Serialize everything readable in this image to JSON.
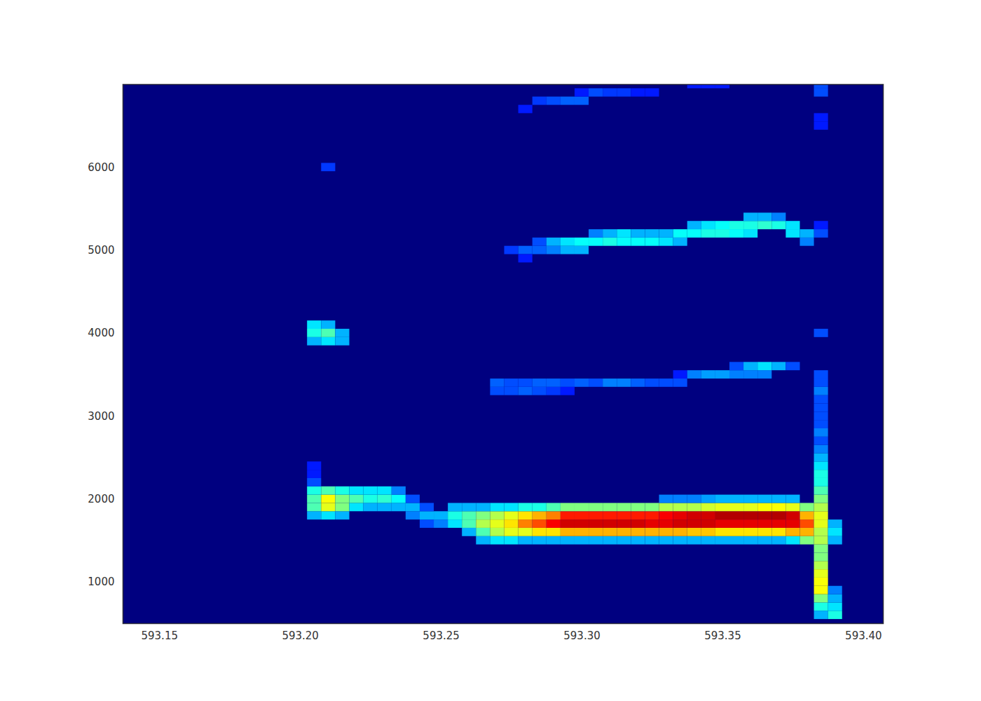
{
  "chart_data": {
    "type": "heatmap",
    "xlim": [
      593.137,
      593.407
    ],
    "ylim": [
      500,
      7000
    ],
    "xticks": [
      593.15,
      {
        "value": 593.2,
        "label": "593.20"
      },
      593.25,
      {
        "value": 593.3,
        "label": "593.30"
      },
      593.35,
      {
        "value": 593.4,
        "label": "593.40"
      }
    ],
    "yticks": [
      1000,
      2000,
      3000,
      4000,
      5000,
      6000
    ],
    "grid": false,
    "color_range": [
      0,
      1
    ],
    "cell_size": {
      "x": 0.005,
      "y": 100
    },
    "cells": [
      [
        593.205,
        1800,
        0.3
      ],
      [
        593.205,
        1900,
        0.45
      ],
      [
        593.205,
        2000,
        0.45
      ],
      [
        593.205,
        2100,
        0.4
      ],
      [
        593.205,
        2200,
        0.2
      ],
      [
        593.205,
        2300,
        0.15
      ],
      [
        593.205,
        2400,
        0.15
      ],
      [
        593.21,
        1800,
        0.35
      ],
      [
        593.21,
        1900,
        0.6
      ],
      [
        593.21,
        2000,
        0.62
      ],
      [
        593.21,
        2100,
        0.45
      ],
      [
        593.215,
        1800,
        0.3
      ],
      [
        593.215,
        1900,
        0.5
      ],
      [
        593.215,
        2000,
        0.5
      ],
      [
        593.215,
        2100,
        0.4
      ],
      [
        593.22,
        1900,
        0.35
      ],
      [
        593.22,
        2000,
        0.45
      ],
      [
        593.22,
        2100,
        0.35
      ],
      [
        593.225,
        1900,
        0.3
      ],
      [
        593.225,
        2000,
        0.4
      ],
      [
        593.225,
        2100,
        0.35
      ],
      [
        593.23,
        1900,
        0.3
      ],
      [
        593.23,
        2000,
        0.42
      ],
      [
        593.23,
        2100,
        0.35
      ],
      [
        593.235,
        1900,
        0.3
      ],
      [
        593.235,
        2000,
        0.38
      ],
      [
        593.235,
        2100,
        0.25
      ],
      [
        593.24,
        1800,
        0.25
      ],
      [
        593.24,
        1900,
        0.3
      ],
      [
        593.24,
        2000,
        0.2
      ],
      [
        593.245,
        1700,
        0.2
      ],
      [
        593.245,
        1800,
        0.3
      ],
      [
        593.245,
        1900,
        0.2
      ],
      [
        593.25,
        1700,
        0.25
      ],
      [
        593.25,
        1800,
        0.3
      ],
      [
        593.255,
        1700,
        0.35
      ],
      [
        593.255,
        1800,
        0.4
      ],
      [
        593.255,
        1900,
        0.3
      ],
      [
        593.26,
        1600,
        0.3
      ],
      [
        593.26,
        1700,
        0.45
      ],
      [
        593.26,
        1800,
        0.45
      ],
      [
        593.26,
        1900,
        0.3
      ],
      [
        593.265,
        1500,
        0.3
      ],
      [
        593.265,
        1600,
        0.45
      ],
      [
        593.265,
        1700,
        0.55
      ],
      [
        593.265,
        1800,
        0.5
      ],
      [
        593.265,
        1900,
        0.3
      ],
      [
        593.27,
        1500,
        0.35
      ],
      [
        593.27,
        1600,
        0.55
      ],
      [
        593.27,
        1700,
        0.6
      ],
      [
        593.27,
        1800,
        0.55
      ],
      [
        593.27,
        1900,
        0.35
      ],
      [
        593.275,
        1500,
        0.35
      ],
      [
        593.275,
        1600,
        0.6
      ],
      [
        593.275,
        1700,
        0.65
      ],
      [
        593.275,
        1800,
        0.6
      ],
      [
        593.275,
        1900,
        0.35
      ],
      [
        593.28,
        1500,
        0.3
      ],
      [
        593.28,
        1600,
        0.6
      ],
      [
        593.28,
        1700,
        0.75
      ],
      [
        593.28,
        1800,
        0.65
      ],
      [
        593.28,
        1900,
        0.4
      ],
      [
        593.285,
        1500,
        0.3
      ],
      [
        593.285,
        1600,
        0.65
      ],
      [
        593.285,
        1700,
        0.8
      ],
      [
        593.285,
        1800,
        0.7
      ],
      [
        593.285,
        1900,
        0.4
      ],
      [
        593.29,
        1500,
        0.3
      ],
      [
        593.29,
        1600,
        0.65
      ],
      [
        593.29,
        1700,
        0.88
      ],
      [
        593.29,
        1800,
        0.75
      ],
      [
        593.29,
        1900,
        0.45
      ],
      [
        593.295,
        1500,
        0.3
      ],
      [
        593.295,
        1600,
        0.7
      ],
      [
        593.295,
        1700,
        0.92
      ],
      [
        593.295,
        1800,
        0.85
      ],
      [
        593.295,
        1900,
        0.5
      ],
      [
        593.3,
        1500,
        0.3
      ],
      [
        593.3,
        1600,
        0.7
      ],
      [
        593.3,
        1700,
        0.92
      ],
      [
        593.3,
        1800,
        0.85
      ],
      [
        593.3,
        1900,
        0.5
      ],
      [
        593.305,
        1500,
        0.3
      ],
      [
        593.305,
        1600,
        0.7
      ],
      [
        593.305,
        1700,
        0.92
      ],
      [
        593.305,
        1800,
        0.85
      ],
      [
        593.305,
        1900,
        0.5
      ],
      [
        593.31,
        1500,
        0.3
      ],
      [
        593.31,
        1600,
        0.7
      ],
      [
        593.31,
        1700,
        0.92
      ],
      [
        593.31,
        1800,
        0.85
      ],
      [
        593.31,
        1900,
        0.5
      ],
      [
        593.315,
        1500,
        0.3
      ],
      [
        593.315,
        1600,
        0.7
      ],
      [
        593.315,
        1700,
        0.92
      ],
      [
        593.315,
        1800,
        0.85
      ],
      [
        593.315,
        1900,
        0.5
      ],
      [
        593.32,
        1500,
        0.3
      ],
      [
        593.32,
        1600,
        0.7
      ],
      [
        593.32,
        1700,
        0.92
      ],
      [
        593.32,
        1800,
        0.85
      ],
      [
        593.32,
        1900,
        0.5
      ],
      [
        593.325,
        1500,
        0.3
      ],
      [
        593.325,
        1600,
        0.7
      ],
      [
        593.325,
        1700,
        0.9
      ],
      [
        593.325,
        1800,
        0.85
      ],
      [
        593.325,
        1900,
        0.5
      ],
      [
        593.33,
        1500,
        0.3
      ],
      [
        593.33,
        1600,
        0.7
      ],
      [
        593.33,
        1700,
        0.9
      ],
      [
        593.33,
        1800,
        0.88
      ],
      [
        593.33,
        1900,
        0.55
      ],
      [
        593.33,
        2000,
        0.25
      ],
      [
        593.335,
        1500,
        0.3
      ],
      [
        593.335,
        1600,
        0.7
      ],
      [
        593.335,
        1700,
        0.92
      ],
      [
        593.335,
        1800,
        0.9
      ],
      [
        593.335,
        1900,
        0.55
      ],
      [
        593.335,
        2000,
        0.25
      ],
      [
        593.34,
        1500,
        0.3
      ],
      [
        593.34,
        1600,
        0.68
      ],
      [
        593.34,
        1700,
        0.92
      ],
      [
        593.34,
        1800,
        0.92
      ],
      [
        593.34,
        1900,
        0.55
      ],
      [
        593.34,
        2000,
        0.25
      ],
      [
        593.345,
        1500,
        0.3
      ],
      [
        593.345,
        1600,
        0.68
      ],
      [
        593.345,
        1700,
        0.92
      ],
      [
        593.345,
        1800,
        0.92
      ],
      [
        593.345,
        1900,
        0.58
      ],
      [
        593.345,
        2000,
        0.28
      ],
      [
        593.35,
        1500,
        0.3
      ],
      [
        593.35,
        1600,
        0.65
      ],
      [
        593.35,
        1700,
        0.9
      ],
      [
        593.35,
        1800,
        0.95
      ],
      [
        593.35,
        1900,
        0.6
      ],
      [
        593.35,
        2000,
        0.3
      ],
      [
        593.355,
        1500,
        0.3
      ],
      [
        593.355,
        1600,
        0.65
      ],
      [
        593.355,
        1700,
        0.9
      ],
      [
        593.355,
        1800,
        0.95
      ],
      [
        593.355,
        1900,
        0.6
      ],
      [
        593.355,
        2000,
        0.3
      ],
      [
        593.36,
        1500,
        0.3
      ],
      [
        593.36,
        1600,
        0.65
      ],
      [
        593.36,
        1700,
        0.9
      ],
      [
        593.36,
        1800,
        0.95
      ],
      [
        593.36,
        1900,
        0.6
      ],
      [
        593.36,
        2000,
        0.3
      ],
      [
        593.365,
        1500,
        0.3
      ],
      [
        593.365,
        1600,
        0.65
      ],
      [
        593.365,
        1700,
        0.9
      ],
      [
        593.365,
        1800,
        0.95
      ],
      [
        593.365,
        1900,
        0.62
      ],
      [
        593.365,
        2000,
        0.3
      ],
      [
        593.37,
        1500,
        0.3
      ],
      [
        593.37,
        1600,
        0.65
      ],
      [
        593.37,
        1700,
        0.9
      ],
      [
        593.37,
        1800,
        0.95
      ],
      [
        593.37,
        1900,
        0.62
      ],
      [
        593.37,
        2000,
        0.3
      ],
      [
        593.375,
        1500,
        0.35
      ],
      [
        593.375,
        1600,
        0.7
      ],
      [
        593.375,
        1700,
        0.9
      ],
      [
        593.375,
        1800,
        0.92
      ],
      [
        593.375,
        1900,
        0.6
      ],
      [
        593.375,
        2000,
        0.3
      ],
      [
        593.38,
        1500,
        0.5
      ],
      [
        593.38,
        1600,
        0.7
      ],
      [
        593.38,
        1700,
        0.8
      ],
      [
        593.38,
        1800,
        0.7
      ],
      [
        593.38,
        1900,
        0.5
      ],
      [
        593.385,
        600,
        0.3
      ],
      [
        593.385,
        700,
        0.4
      ],
      [
        593.385,
        800,
        0.5
      ],
      [
        593.385,
        900,
        0.62
      ],
      [
        593.385,
        1000,
        0.62
      ],
      [
        593.385,
        1100,
        0.6
      ],
      [
        593.385,
        1200,
        0.55
      ],
      [
        593.385,
        1300,
        0.5
      ],
      [
        593.385,
        1400,
        0.5
      ],
      [
        593.385,
        1500,
        0.55
      ],
      [
        593.385,
        1600,
        0.55
      ],
      [
        593.385,
        1700,
        0.6
      ],
      [
        593.385,
        1800,
        0.6
      ],
      [
        593.385,
        1900,
        0.55
      ],
      [
        593.385,
        2000,
        0.5
      ],
      [
        593.385,
        2100,
        0.45
      ],
      [
        593.385,
        2200,
        0.4
      ],
      [
        593.385,
        2300,
        0.4
      ],
      [
        593.385,
        2400,
        0.35
      ],
      [
        593.385,
        2500,
        0.3
      ],
      [
        593.385,
        2600,
        0.25
      ],
      [
        593.385,
        2700,
        0.2
      ],
      [
        593.385,
        2800,
        0.25
      ],
      [
        593.385,
        2900,
        0.2
      ],
      [
        593.385,
        3000,
        0.2
      ],
      [
        593.385,
        3100,
        0.2
      ],
      [
        593.385,
        3200,
        0.2
      ],
      [
        593.385,
        3300,
        0.25
      ],
      [
        593.385,
        3400,
        0.2
      ],
      [
        593.385,
        3500,
        0.2
      ],
      [
        593.385,
        4000,
        0.2
      ],
      [
        593.385,
        5200,
        0.2
      ],
      [
        593.385,
        5300,
        0.15
      ],
      [
        593.385,
        6500,
        0.15
      ],
      [
        593.385,
        6600,
        0.15
      ],
      [
        593.385,
        6900,
        0.2
      ],
      [
        593.385,
        7000,
        0.2
      ],
      [
        593.39,
        600,
        0.4
      ],
      [
        593.39,
        700,
        0.35
      ],
      [
        593.39,
        800,
        0.3
      ],
      [
        593.39,
        900,
        0.25
      ],
      [
        593.39,
        1500,
        0.3
      ],
      [
        593.39,
        1600,
        0.35
      ],
      [
        593.39,
        1700,
        0.3
      ],
      [
        593.27,
        3300,
        0.2
      ],
      [
        593.27,
        3400,
        0.22
      ],
      [
        593.275,
        3300,
        0.2
      ],
      [
        593.275,
        3400,
        0.2
      ],
      [
        593.28,
        3300,
        0.22
      ],
      [
        593.28,
        3400,
        0.2
      ],
      [
        593.285,
        3300,
        0.2
      ],
      [
        593.285,
        3400,
        0.22
      ],
      [
        593.29,
        3300,
        0.18
      ],
      [
        593.29,
        3400,
        0.22
      ],
      [
        593.295,
        3300,
        0.15
      ],
      [
        593.295,
        3400,
        0.2
      ],
      [
        593.3,
        3400,
        0.22
      ],
      [
        593.305,
        3400,
        0.2
      ],
      [
        593.31,
        3400,
        0.25
      ],
      [
        593.315,
        3400,
        0.25
      ],
      [
        593.32,
        3400,
        0.22
      ],
      [
        593.325,
        3400,
        0.2
      ],
      [
        593.33,
        3400,
        0.2
      ],
      [
        593.335,
        3400,
        0.2
      ],
      [
        593.335,
        3500,
        0.15
      ],
      [
        593.34,
        3500,
        0.25
      ],
      [
        593.345,
        3500,
        0.28
      ],
      [
        593.35,
        3500,
        0.28
      ],
      [
        593.355,
        3500,
        0.25
      ],
      [
        593.355,
        3600,
        0.2
      ],
      [
        593.36,
        3500,
        0.25
      ],
      [
        593.36,
        3600,
        0.3
      ],
      [
        593.365,
        3500,
        0.25
      ],
      [
        593.365,
        3600,
        0.35
      ],
      [
        593.37,
        3600,
        0.3
      ],
      [
        593.375,
        3600,
        0.2
      ],
      [
        593.275,
        5000,
        0.18
      ],
      [
        593.28,
        5000,
        0.22
      ],
      [
        593.28,
        4900,
        0.15
      ],
      [
        593.285,
        5000,
        0.22
      ],
      [
        593.285,
        5100,
        0.2
      ],
      [
        593.29,
        5000,
        0.25
      ],
      [
        593.29,
        5100,
        0.3
      ],
      [
        593.295,
        5000,
        0.3
      ],
      [
        593.295,
        5100,
        0.35
      ],
      [
        593.3,
        5000,
        0.3
      ],
      [
        593.3,
        5100,
        0.38
      ],
      [
        593.305,
        5100,
        0.38
      ],
      [
        593.305,
        5200,
        0.25
      ],
      [
        593.31,
        5100,
        0.4
      ],
      [
        593.31,
        5200,
        0.3
      ],
      [
        593.315,
        5100,
        0.38
      ],
      [
        593.315,
        5200,
        0.35
      ],
      [
        593.32,
        5100,
        0.38
      ],
      [
        593.32,
        5200,
        0.3
      ],
      [
        593.325,
        5100,
        0.38
      ],
      [
        593.325,
        5200,
        0.3
      ],
      [
        593.33,
        5100,
        0.35
      ],
      [
        593.33,
        5200,
        0.3
      ],
      [
        593.335,
        5100,
        0.3
      ],
      [
        593.335,
        5200,
        0.38
      ],
      [
        593.34,
        5200,
        0.38
      ],
      [
        593.34,
        5300,
        0.3
      ],
      [
        593.345,
        5200,
        0.4
      ],
      [
        593.345,
        5300,
        0.35
      ],
      [
        593.35,
        5200,
        0.4
      ],
      [
        593.35,
        5300,
        0.38
      ],
      [
        593.355,
        5200,
        0.38
      ],
      [
        593.355,
        5300,
        0.4
      ],
      [
        593.36,
        5200,
        0.35
      ],
      [
        593.36,
        5300,
        0.4
      ],
      [
        593.36,
        5400,
        0.3
      ],
      [
        593.365,
        5300,
        0.42
      ],
      [
        593.365,
        5400,
        0.3
      ],
      [
        593.37,
        5300,
        0.4
      ],
      [
        593.37,
        5400,
        0.25
      ],
      [
        593.375,
        5200,
        0.35
      ],
      [
        593.375,
        5300,
        0.35
      ],
      [
        593.38,
        5100,
        0.25
      ],
      [
        593.38,
        5200,
        0.3
      ],
      [
        593.28,
        6700,
        0.15
      ],
      [
        593.285,
        6800,
        0.18
      ],
      [
        593.29,
        6800,
        0.2
      ],
      [
        593.295,
        6800,
        0.22
      ],
      [
        593.3,
        6800,
        0.22
      ],
      [
        593.3,
        6900,
        0.15
      ],
      [
        593.305,
        6900,
        0.2
      ],
      [
        593.31,
        6900,
        0.18
      ],
      [
        593.315,
        6900,
        0.18
      ],
      [
        593.32,
        6900,
        0.15
      ],
      [
        593.325,
        6900,
        0.15
      ],
      [
        593.34,
        7000,
        0.15
      ],
      [
        593.345,
        7000,
        0.15
      ],
      [
        593.35,
        7000,
        0.15
      ],
      [
        593.205,
        3900,
        0.3
      ],
      [
        593.205,
        4000,
        0.4
      ],
      [
        593.205,
        4100,
        0.35
      ],
      [
        593.21,
        3900,
        0.35
      ],
      [
        593.21,
        4000,
        0.45
      ],
      [
        593.21,
        4100,
        0.3
      ],
      [
        593.215,
        3900,
        0.3
      ],
      [
        593.215,
        4000,
        0.3
      ],
      [
        593.21,
        6000,
        0.18
      ]
    ]
  }
}
